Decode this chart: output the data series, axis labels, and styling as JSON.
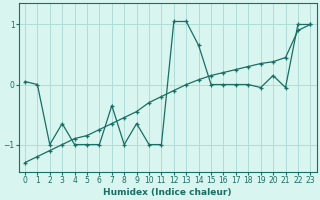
{
  "xlabel": "Humidex (Indice chaleur)",
  "background_color": "#d8f5f0",
  "line_color": "#1a6e64",
  "grid_color": "#b0ddd8",
  "xlim": [
    -0.5,
    23.5
  ],
  "ylim": [
    -1.45,
    1.35
  ],
  "yticks": [
    -1,
    0,
    1
  ],
  "xticks": [
    0,
    1,
    2,
    3,
    4,
    5,
    6,
    7,
    8,
    9,
    10,
    11,
    12,
    13,
    14,
    15,
    16,
    17,
    18,
    19,
    20,
    21,
    22,
    23
  ],
  "curve1_x": [
    0,
    1,
    2,
    3,
    4,
    5,
    6,
    7,
    8,
    9,
    10,
    11,
    12,
    13,
    14,
    15,
    16,
    17,
    18,
    19,
    20,
    21,
    22,
    23
  ],
  "curve1_y": [
    0.05,
    0.0,
    -1.0,
    -0.65,
    -1.0,
    -1.0,
    -1.0,
    -0.35,
    -1.0,
    -0.65,
    -1.0,
    -1.0,
    1.05,
    1.05,
    0.65,
    0.0,
    0.0,
    0.0,
    0.0,
    -0.05,
    0.15,
    -0.05,
    1.0,
    1.0
  ],
  "curve2_x": [
    0,
    1,
    2,
    3,
    4,
    5,
    6,
    7,
    8,
    9,
    10,
    11,
    12,
    13,
    14,
    15,
    16,
    17,
    18,
    19,
    20,
    21,
    22,
    23
  ],
  "curve2_y": [
    -1.3,
    -1.2,
    -1.1,
    -1.0,
    -0.9,
    -0.85,
    -0.75,
    -0.65,
    -0.55,
    -0.45,
    -0.3,
    -0.2,
    -0.1,
    0.0,
    0.08,
    0.15,
    0.2,
    0.25,
    0.3,
    0.35,
    0.38,
    0.45,
    0.9,
    1.0
  ],
  "marker": "+"
}
